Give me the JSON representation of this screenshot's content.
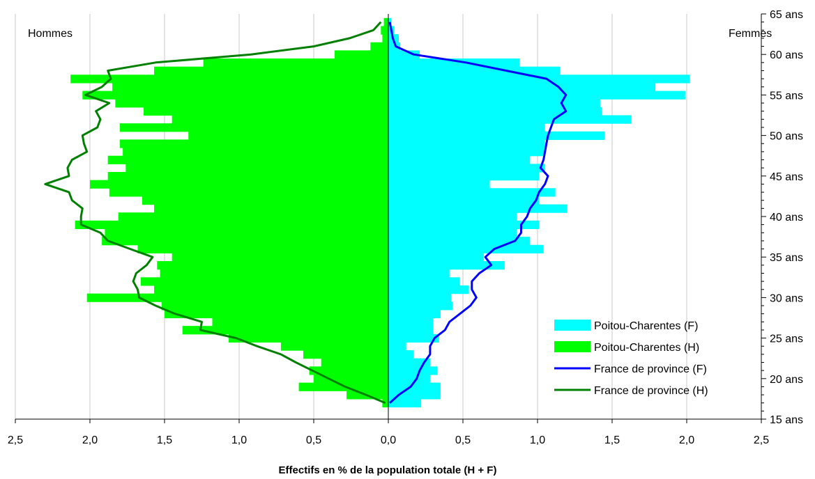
{
  "chart_data": {
    "type": "bar",
    "subtype": "population-pyramid",
    "title": "",
    "xlabel": "Effectifs en % de la population totale (H + F)",
    "ylabel": "",
    "left_label": "Hommes",
    "right_label": "Femmes",
    "xlim": [
      -2.5,
      2.5
    ],
    "ylim": [
      15,
      65
    ],
    "x_ticks": [
      "2,5",
      "2,0",
      "1,5",
      "1,0",
      "0,5",
      "0,0",
      "0,5",
      "1,0",
      "1,5",
      "2,0",
      "2,5"
    ],
    "y_ticks": [
      "15 ans",
      "20 ans",
      "25 ans",
      "30 ans",
      "35 ans",
      "40 ans",
      "45 ans",
      "50 ans",
      "55 ans",
      "60 ans",
      "65 ans"
    ],
    "grid": "vertical",
    "legend_position": "bottom-right",
    "ages": [
      17,
      18,
      19,
      20,
      21,
      22,
      23,
      24,
      25,
      26,
      27,
      28,
      29,
      30,
      31,
      32,
      33,
      34,
      35,
      36,
      37,
      38,
      39,
      40,
      41,
      42,
      43,
      44,
      45,
      46,
      47,
      48,
      49,
      50,
      51,
      52,
      53,
      54,
      55,
      56,
      57,
      58,
      59,
      60,
      61,
      62,
      63,
      64
    ],
    "series": [
      {
        "name": "Poitou-Charentes (F)",
        "kind": "bar",
        "side": "right",
        "color": "#00ffff",
        "values": [
          0.22,
          0.35,
          0.35,
          0.28,
          0.33,
          0.28,
          0.17,
          0.12,
          0.34,
          0.3,
          0.3,
          0.35,
          0.43,
          0.42,
          0.54,
          0.48,
          0.41,
          0.78,
          0.64,
          1.04,
          0.95,
          0.86,
          1.01,
          0.86,
          1.2,
          1.01,
          1.12,
          0.68,
          1.01,
          1.05,
          0.95,
          1.05,
          1.05,
          1.45,
          1.05,
          1.63,
          1.43,
          1.42,
          1.99,
          1.79,
          2.02,
          1.15,
          0.88,
          0.21,
          0.08,
          0.07,
          0.04,
          0.02
        ]
      },
      {
        "name": "Poitou-Charentes (H)",
        "kind": "bar",
        "side": "left",
        "color": "#00ff00",
        "values": [
          0.04,
          0.28,
          0.6,
          0.5,
          0.53,
          0.45,
          0.57,
          0.72,
          1.07,
          1.38,
          1.18,
          1.5,
          1.52,
          2.02,
          1.57,
          1.66,
          1.53,
          1.55,
          1.45,
          1.68,
          1.92,
          1.9,
          2.1,
          1.81,
          1.57,
          1.65,
          1.87,
          2.0,
          1.88,
          1.76,
          1.88,
          1.78,
          1.8,
          1.34,
          1.8,
          1.45,
          1.64,
          1.83,
          2.05,
          1.85,
          2.13,
          1.57,
          1.24,
          0.36,
          0.12,
          0.04,
          0.05,
          0.03
        ]
      },
      {
        "name": "France de province (F)",
        "kind": "line",
        "side": "right",
        "color": "#0000ff",
        "values": [
          0.01,
          0.07,
          0.15,
          0.19,
          0.21,
          0.24,
          0.28,
          0.28,
          0.31,
          0.38,
          0.41,
          0.48,
          0.55,
          0.59,
          0.56,
          0.56,
          0.61,
          0.69,
          0.65,
          0.71,
          0.85,
          0.89,
          0.89,
          0.93,
          0.95,
          0.99,
          1.01,
          1.05,
          1.07,
          1.02,
          1.04,
          1.05,
          1.06,
          1.07,
          1.09,
          1.11,
          1.19,
          1.16,
          1.19,
          1.14,
          1.06,
          0.79,
          0.52,
          0.17,
          0.05,
          0.03,
          0.02,
          0.01
        ]
      },
      {
        "name": "France de province (H)",
        "kind": "line",
        "side": "left",
        "color": "#008000",
        "values": [
          0.02,
          0.15,
          0.29,
          0.4,
          0.51,
          0.62,
          0.72,
          0.88,
          1.02,
          1.26,
          1.25,
          1.43,
          1.56,
          1.67,
          1.68,
          1.71,
          1.69,
          1.62,
          1.58,
          1.73,
          1.88,
          1.93,
          2.06,
          2.06,
          2.05,
          2.12,
          2.14,
          2.3,
          2.14,
          2.15,
          2.12,
          2.02,
          2.04,
          2.05,
          1.95,
          1.93,
          1.96,
          1.87,
          2.03,
          1.92,
          1.86,
          1.88,
          1.56,
          0.92,
          0.5,
          0.26,
          0.1,
          0.05
        ]
      }
    ]
  }
}
